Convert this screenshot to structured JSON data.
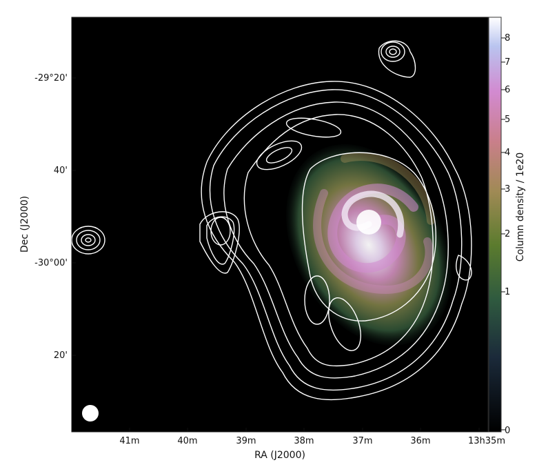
{
  "figure": {
    "x_axis_label": "RA (J2000)",
    "y_axis_label": "Dec (J2000)",
    "colorbar_label": "Column density / 1e20",
    "x_ticks": [
      "41m",
      "40m",
      "39m",
      "38m",
      "37m",
      "36m",
      "13h35m"
    ],
    "y_ticks": [
      "-29°20'",
      "40'",
      "-30°00'",
      "20'"
    ],
    "colorbar_ticks": [
      "8",
      "7",
      "6",
      "5",
      "4",
      "3",
      "2",
      "1",
      "0"
    ],
    "colors": {
      "background": "#000000",
      "contour": "#ffffff",
      "colormap": [
        "#000000",
        "#1b2a3a",
        "#2f5a3f",
        "#5b7b2e",
        "#a08a55",
        "#c97f8a",
        "#d28ad0",
        "#b9c4ef",
        "#ffffff"
      ]
    }
  }
}
